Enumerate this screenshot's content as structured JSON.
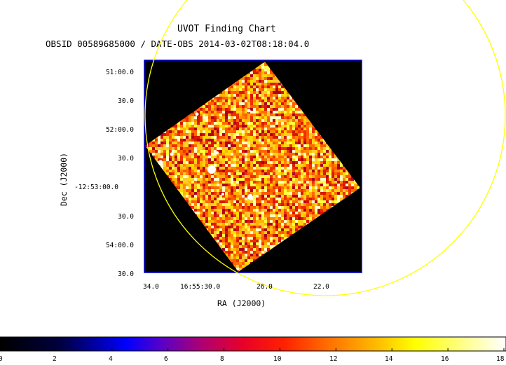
{
  "chart": {
    "title": "UVOT Finding Chart",
    "subtitle": "OBSID 00589685000 / DATE-OBS 2014-03-02T08:18:04.0",
    "xlabel": "RA (J2000)",
    "ylabel": "Dec (J2000)",
    "ra_ticks": [
      "34.0",
      "16:55:30.0",
      "26.0",
      "22.0"
    ],
    "dec_ticks": [
      "51:00.0",
      "30.0",
      "52:00.0",
      "30.0",
      "-12:53:00.0",
      "30.0",
      "54:00.0",
      "30.0"
    ],
    "colorbar": {
      "ticks": [
        "0",
        "2",
        "4",
        "6",
        "8",
        "10",
        "12",
        "14",
        "16",
        "18"
      ],
      "min": 0,
      "max": 18
    },
    "colors": {
      "frame": "#0000cc",
      "background": "#000000",
      "circle": "#ffff00"
    }
  }
}
